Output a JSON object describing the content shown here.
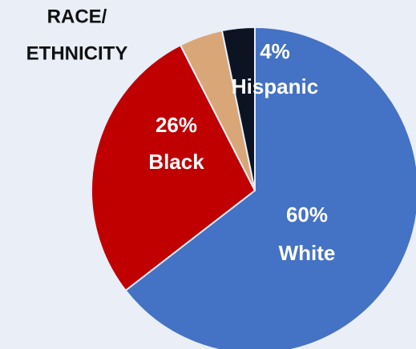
{
  "chart_data": {
    "type": "pie",
    "title": [
      "RACE/",
      "ETHNICITY"
    ],
    "categories": [
      "White",
      "Black",
      "Hispanic",
      null
    ],
    "values": [
      60,
      26,
      4,
      3
    ],
    "value_labels": [
      "60%",
      "26%",
      "4%",
      null
    ],
    "colors": [
      "#4472c4",
      "#c00000",
      "#d9a677",
      "#0c1424"
    ]
  }
}
